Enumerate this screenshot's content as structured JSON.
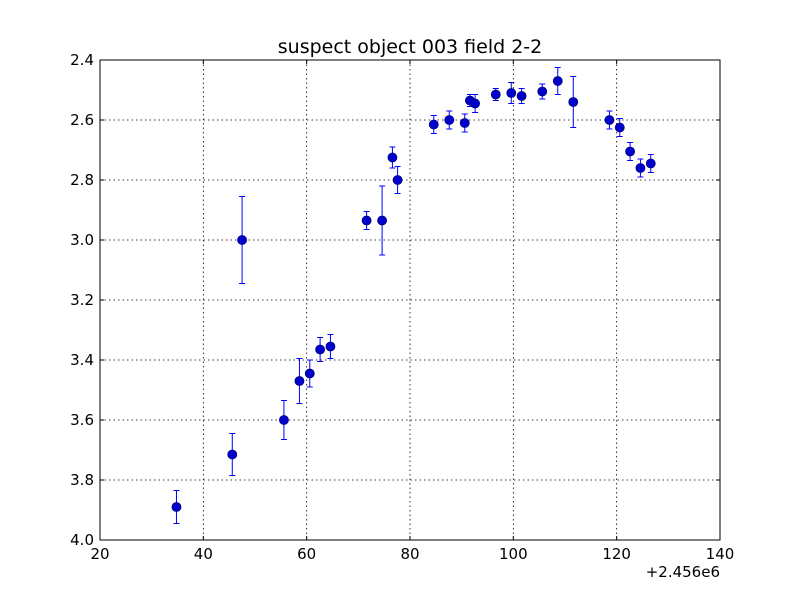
{
  "chart_data": {
    "type": "scatter",
    "title": "suspect object 003 field 2-2",
    "xlabel": "",
    "ylabel": "",
    "x_offset_label": "+2.456e6",
    "xlim": [
      20,
      140
    ],
    "ylim": [
      2.4,
      4.0
    ],
    "y_inverted": true,
    "grid": true,
    "x_ticks": [
      20,
      40,
      60,
      80,
      100,
      120,
      140
    ],
    "x_tick_labels": [
      "20",
      "40",
      "60",
      "80",
      "100",
      "120",
      "140"
    ],
    "y_ticks": [
      2.4,
      2.6,
      2.8,
      3.0,
      3.2,
      3.4,
      3.6,
      3.8,
      4.0
    ],
    "y_tick_labels": [
      "2.4",
      "2.6",
      "2.8",
      "3.0",
      "3.2",
      "3.4",
      "3.6",
      "3.8",
      "4.0"
    ],
    "marker_color": "#0000cc",
    "errorbar_color": "#0000ff",
    "series": [
      {
        "points": [
          {
            "x": 34.8,
            "y": 3.89,
            "err": 0.055
          },
          {
            "x": 45.6,
            "y": 3.715,
            "err": 0.07
          },
          {
            "x": 47.5,
            "y": 3.0,
            "err": 0.145
          },
          {
            "x": 55.6,
            "y": 3.6,
            "err": 0.065
          },
          {
            "x": 58.6,
            "y": 3.47,
            "err": 0.075
          },
          {
            "x": 60.6,
            "y": 3.445,
            "err": 0.045
          },
          {
            "x": 62.6,
            "y": 3.365,
            "err": 0.04
          },
          {
            "x": 64.6,
            "y": 3.355,
            "err": 0.04
          },
          {
            "x": 71.6,
            "y": 2.935,
            "err": 0.03
          },
          {
            "x": 74.6,
            "y": 2.935,
            "err": 0.115
          },
          {
            "x": 76.6,
            "y": 2.725,
            "err": 0.035
          },
          {
            "x": 77.6,
            "y": 2.8,
            "err": 0.045
          },
          {
            "x": 84.6,
            "y": 2.615,
            "err": 0.03
          },
          {
            "x": 87.6,
            "y": 2.6,
            "err": 0.03
          },
          {
            "x": 90.6,
            "y": 2.61,
            "err": 0.03
          },
          {
            "x": 91.6,
            "y": 2.535,
            "err": 0.02
          },
          {
            "x": 92.6,
            "y": 2.545,
            "err": 0.03
          },
          {
            "x": 96.6,
            "y": 2.515,
            "err": 0.02
          },
          {
            "x": 99.6,
            "y": 2.51,
            "err": 0.035
          },
          {
            "x": 101.6,
            "y": 2.52,
            "err": 0.025
          },
          {
            "x": 105.6,
            "y": 2.505,
            "err": 0.025
          },
          {
            "x": 108.6,
            "y": 2.47,
            "err": 0.045
          },
          {
            "x": 111.6,
            "y": 2.54,
            "err": 0.085
          },
          {
            "x": 118.6,
            "y": 2.6,
            "err": 0.03
          },
          {
            "x": 120.6,
            "y": 2.625,
            "err": 0.03
          },
          {
            "x": 122.6,
            "y": 2.705,
            "err": 0.03
          },
          {
            "x": 124.6,
            "y": 2.76,
            "err": 0.03
          },
          {
            "x": 126.6,
            "y": 2.745,
            "err": 0.03
          }
        ]
      }
    ]
  }
}
